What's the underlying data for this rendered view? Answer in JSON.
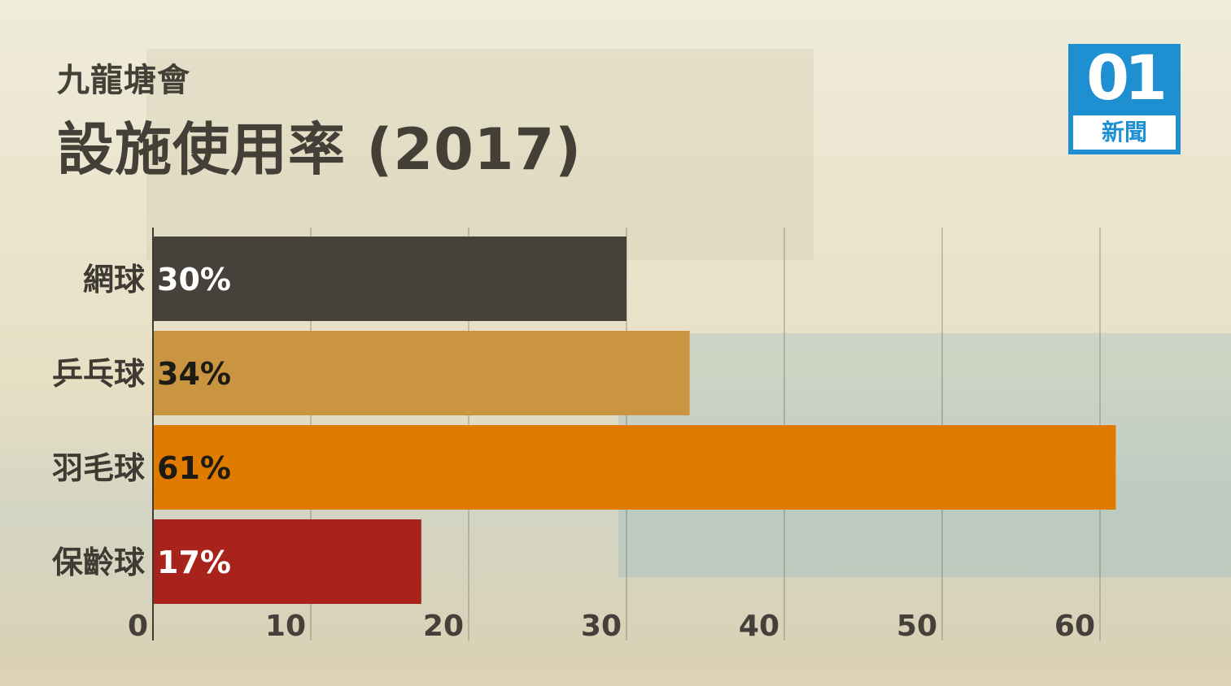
{
  "header": {
    "subtitle": "九龍塘會",
    "title": "設施使用率 (2017)"
  },
  "logo": {
    "number": "01",
    "text": "新聞",
    "color": "#1e8fd0"
  },
  "chart_data": {
    "type": "bar",
    "orientation": "horizontal",
    "categories": [
      "網球",
      "乒乓球",
      "羽毛球",
      "保齡球"
    ],
    "values": [
      30,
      34,
      61,
      17
    ],
    "value_labels": [
      "30%",
      "34%",
      "61%",
      "17%"
    ],
    "colors": [
      "#46413a",
      "#c99540",
      "#e07b00",
      "#a7231c"
    ],
    "value_label_colors": [
      "#ffffff",
      "#1e1a14",
      "#1e1a14",
      "#ffffff"
    ],
    "xlim": [
      0,
      60
    ],
    "xticks": [
      0,
      10,
      20,
      30,
      40,
      50,
      60
    ],
    "grid": true,
    "legend": "none"
  }
}
